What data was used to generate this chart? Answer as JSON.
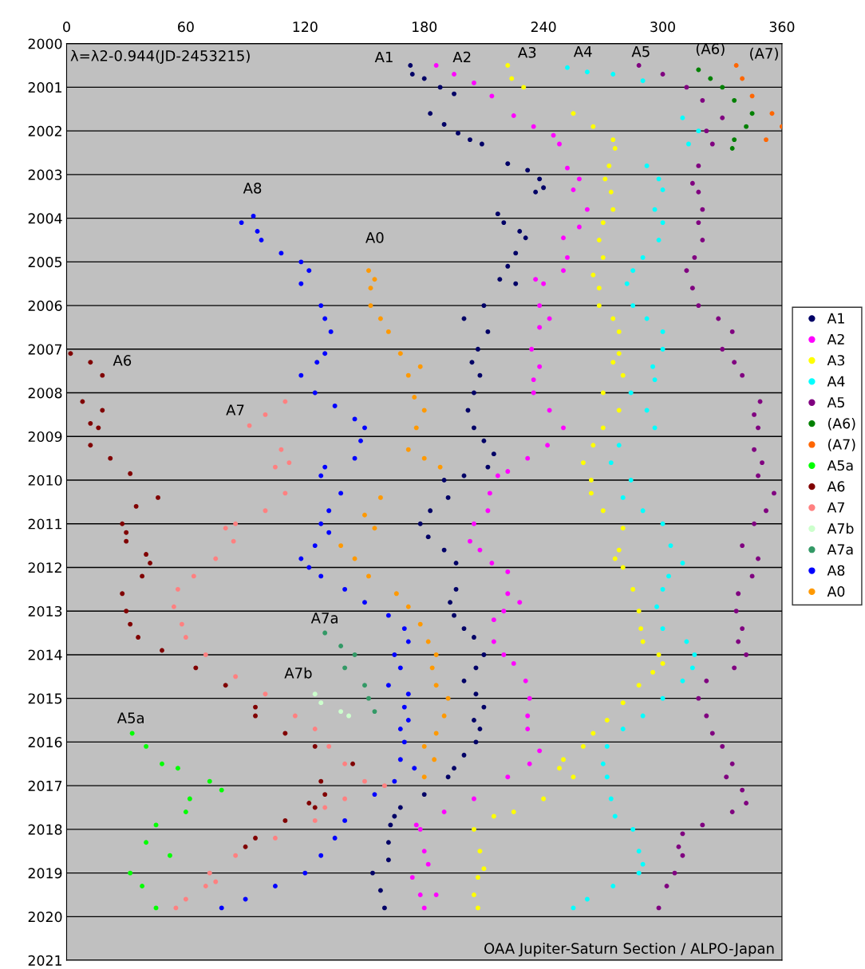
{
  "chart_data": {
    "type": "scatter",
    "xlim": [
      0,
      360
    ],
    "xticks": [
      0,
      60,
      120,
      180,
      240,
      300,
      360
    ],
    "ylim": [
      2021,
      2000
    ],
    "yticks": [
      2000,
      2001,
      2002,
      2003,
      2004,
      2005,
      2006,
      2007,
      2008,
      2009,
      2010,
      2011,
      2012,
      2013,
      2014,
      2015,
      2016,
      2017,
      2018,
      2019,
      2020,
      2021
    ],
    "grid": "y",
    "legend": "right",
    "marker": "circle",
    "annotations": [
      "λ=λ2-0.944(JD-2453215)",
      "OAA Jupiter-Saturn Section / ALPO-Japan",
      "A1",
      "A2",
      "A3",
      "A4",
      "A5",
      "(A6)",
      "(A7)",
      "A8",
      "A0",
      "A6",
      "A7",
      "A7a",
      "A7b",
      "A5a"
    ],
    "series": [
      {
        "name": "A1",
        "color": "#000066",
        "x": [
          173,
          174,
          180,
          188,
          195,
          183,
          190,
          197,
          203,
          209,
          222,
          232,
          238,
          240,
          236,
          217,
          220,
          228,
          231,
          226,
          222,
          218,
          226,
          210,
          200,
          212,
          207,
          204,
          208,
          205,
          202,
          205,
          210,
          215,
          212,
          200,
          190,
          192,
          183,
          178,
          182,
          190,
          196,
          196,
          193,
          195,
          200,
          205,
          210,
          206,
          200,
          206,
          210,
          205,
          208,
          206,
          200,
          195,
          192,
          180,
          168,
          165,
          163,
          162,
          162,
          154,
          158,
          160
        ],
        "values": [
          2000.5,
          2000.7,
          2000.8,
          2001.0,
          2001.15,
          2001.6,
          2001.85,
          2002.05,
          2002.2,
          2002.3,
          2002.75,
          2002.9,
          2003.1,
          2003.3,
          2003.4,
          2003.9,
          2004.1,
          2004.3,
          2004.45,
          2004.8,
          2005.1,
          2005.4,
          2005.5,
          2006.0,
          2006.3,
          2006.6,
          2007.0,
          2007.3,
          2007.6,
          2008.0,
          2008.4,
          2008.8,
          2009.1,
          2009.4,
          2009.7,
          2009.9,
          2010.0,
          2010.4,
          2010.7,
          2011.0,
          2011.3,
          2011.6,
          2011.9,
          2012.5,
          2012.8,
          2013.1,
          2013.4,
          2013.6,
          2014.0,
          2014.3,
          2014.6,
          2014.9,
          2015.2,
          2015.5,
          2015.7,
          2016.0,
          2016.3,
          2016.6,
          2016.8,
          2017.2,
          2017.5,
          2017.7,
          2017.9,
          2018.3,
          2018.7,
          2019.0,
          2019.4,
          2019.8
        ]
      },
      {
        "name": "A2",
        "color": "#ff00ff",
        "x": [
          186,
          195,
          205,
          214,
          225,
          235,
          245,
          248,
          252,
          258,
          255,
          262,
          258,
          250,
          252,
          250,
          236,
          240,
          238,
          243,
          238,
          234,
          238,
          235,
          235,
          243,
          250,
          242,
          232,
          222,
          217,
          213,
          212,
          205,
          203,
          208,
          214,
          222,
          222,
          228,
          220,
          215,
          215,
          220,
          225,
          231,
          233,
          232,
          232,
          238,
          233,
          222,
          205,
          190,
          176,
          178,
          180,
          182,
          174,
          178,
          186,
          180
        ],
        "values": [
          2000.5,
          2000.7,
          2000.9,
          2001.2,
          2001.65,
          2001.9,
          2002.1,
          2002.3,
          2002.85,
          2003.1,
          2003.35,
          2003.8,
          2004.2,
          2004.45,
          2004.9,
          2005.2,
          2005.4,
          2005.5,
          2006.0,
          2006.3,
          2006.5,
          2007.0,
          2007.4,
          2007.7,
          2008.0,
          2008.4,
          2008.8,
          2009.2,
          2009.5,
          2009.8,
          2009.9,
          2010.3,
          2010.7,
          2011.0,
          2011.4,
          2011.6,
          2011.9,
          2012.1,
          2012.6,
          2012.8,
          2013.0,
          2013.2,
          2013.7,
          2014.0,
          2014.2,
          2014.6,
          2015.0,
          2015.4,
          2015.7,
          2016.2,
          2016.5,
          2016.8,
          2017.3,
          2017.6,
          2017.9,
          2018.0,
          2018.5,
          2018.8,
          2019.1,
          2019.5,
          2019.5,
          2019.8
        ]
      },
      {
        "name": "A3",
        "color": "#ffff00",
        "x": [
          222,
          224,
          230,
          255,
          265,
          275,
          276,
          273,
          271,
          274,
          275,
          270,
          268,
          270,
          265,
          268,
          268,
          275,
          278,
          278,
          275,
          280,
          270,
          278,
          270,
          265,
          260,
          264,
          264,
          270,
          280,
          278,
          276,
          280,
          285,
          288,
          289,
          290,
          298,
          300,
          295,
          288,
          280,
          272,
          265,
          260,
          250,
          248,
          255,
          240,
          225,
          215,
          205,
          208,
          210,
          207,
          205,
          207
        ],
        "values": [
          2000.5,
          2000.8,
          2001.0,
          2001.6,
          2001.9,
          2002.2,
          2002.4,
          2002.8,
          2003.1,
          2003.4,
          2003.8,
          2004.1,
          2004.5,
          2004.9,
          2005.3,
          2005.6,
          2006.0,
          2006.3,
          2006.6,
          2007.1,
          2007.3,
          2007.6,
          2008.0,
          2008.4,
          2008.8,
          2009.2,
          2009.6,
          2010.0,
          2010.3,
          2010.7,
          2011.1,
          2011.6,
          2011.8,
          2012.0,
          2012.5,
          2013.0,
          2013.4,
          2013.7,
          2014.0,
          2014.2,
          2014.4,
          2014.7,
          2015.1,
          2015.5,
          2015.8,
          2016.1,
          2016.4,
          2016.6,
          2016.8,
          2017.3,
          2017.6,
          2017.7,
          2018.0,
          2018.5,
          2018.9,
          2019.1,
          2019.5,
          2019.8
        ]
      },
      {
        "name": "A4",
        "color": "#00ffff",
        "x": [
          252,
          262,
          275,
          290,
          310,
          318,
          313,
          292,
          298,
          300,
          296,
          300,
          298,
          290,
          285,
          282,
          285,
          292,
          300,
          300,
          295,
          296,
          284,
          292,
          296,
          278,
          274,
          284,
          280,
          290,
          300,
          304,
          310,
          303,
          300,
          297,
          300,
          312,
          316,
          315,
          310,
          300,
          290,
          280,
          272,
          270,
          272,
          274,
          276,
          285,
          288,
          290,
          288,
          275,
          262,
          255
        ],
        "values": [
          2000.55,
          2000.65,
          2000.7,
          2000.85,
          2001.7,
          2002.0,
          2002.3,
          2002.8,
          2003.1,
          2003.35,
          2003.8,
          2004.1,
          2004.5,
          2004.9,
          2005.2,
          2005.5,
          2006.0,
          2006.3,
          2006.6,
          2007.0,
          2007.4,
          2007.7,
          2008.0,
          2008.4,
          2008.8,
          2009.2,
          2009.6,
          2010.0,
          2010.4,
          2010.7,
          2011.0,
          2011.5,
          2011.9,
          2012.2,
          2012.5,
          2012.9,
          2013.4,
          2013.7,
          2014.0,
          2014.3,
          2014.6,
          2015.0,
          2015.4,
          2015.7,
          2016.1,
          2016.5,
          2016.8,
          2017.3,
          2017.7,
          2018.0,
          2018.5,
          2018.8,
          2019.0,
          2019.3,
          2019.6,
          2019.8
        ]
      },
      {
        "name": "A5",
        "color": "#800080",
        "x": [
          288,
          300,
          312,
          320,
          330,
          322,
          325,
          318,
          315,
          318,
          320,
          318,
          320,
          316,
          312,
          315,
          318,
          328,
          335,
          330,
          336,
          340,
          349,
          346,
          348,
          346,
          350,
          348,
          356,
          352,
          346,
          340,
          348,
          345,
          338,
          337,
          340,
          338,
          342,
          336,
          322,
          318,
          322,
          325,
          330,
          335,
          332,
          340,
          342,
          335,
          320,
          310,
          308,
          310,
          306,
          302,
          298
        ],
        "values": [
          2000.5,
          2000.7,
          2001.0,
          2001.3,
          2001.7,
          2002.0,
          2002.3,
          2002.8,
          2003.2,
          2003.4,
          2003.8,
          2004.1,
          2004.5,
          2004.9,
          2005.2,
          2005.6,
          2006.0,
          2006.3,
          2006.6,
          2007.0,
          2007.3,
          2007.6,
          2008.2,
          2008.5,
          2008.8,
          2009.3,
          2009.6,
          2009.9,
          2010.3,
          2010.7,
          2011.0,
          2011.5,
          2011.8,
          2012.2,
          2012.6,
          2013.0,
          2013.4,
          2013.7,
          2014.0,
          2014.3,
          2014.6,
          2015.0,
          2015.4,
          2015.8,
          2016.1,
          2016.5,
          2016.8,
          2017.1,
          2017.4,
          2017.6,
          2017.9,
          2018.1,
          2018.4,
          2018.6,
          2019.0,
          2019.3,
          2019.8
        ]
      },
      {
        "name": "(A6)",
        "color": "#008000",
        "x": [
          318,
          324,
          330,
          336,
          345,
          342,
          336,
          335
        ],
        "values": [
          2000.6,
          2000.8,
          2001.0,
          2001.3,
          2001.6,
          2001.9,
          2002.2,
          2002.4
        ]
      },
      {
        "name": "(A7)",
        "color": "#ff6600",
        "x": [
          337,
          340,
          345,
          355,
          360,
          352
        ],
        "values": [
          2000.5,
          2000.8,
          2001.2,
          2001.6,
          2001.9,
          2002.2
        ]
      },
      {
        "name": "A5a",
        "color": "#00ff00",
        "x": [
          33,
          40,
          48,
          56,
          72,
          78,
          62,
          60,
          45,
          40,
          52,
          32,
          38,
          45
        ],
        "values": [
          2015.8,
          2016.1,
          2016.5,
          2016.6,
          2016.9,
          2017.1,
          2017.3,
          2017.6,
          2017.9,
          2018.3,
          2018.6,
          2019.0,
          2019.3,
          2019.8
        ]
      },
      {
        "name": "A6",
        "color": "#800000",
        "x": [
          2,
          12,
          18,
          8,
          18,
          12,
          16,
          12,
          22,
          32,
          46,
          35,
          28,
          30,
          30,
          40,
          42,
          38,
          28,
          30,
          32,
          36,
          48,
          65,
          80,
          95,
          95,
          110,
          125,
          144,
          128,
          130,
          122,
          125,
          110,
          95,
          90
        ],
        "values": [
          2007.1,
          2007.3,
          2007.6,
          2008.2,
          2008.4,
          2008.7,
          2008.8,
          2009.2,
          2009.5,
          2009.85,
          2010.4,
          2010.6,
          2011.0,
          2011.2,
          2011.4,
          2011.7,
          2011.9,
          2012.2,
          2012.6,
          2013.0,
          2013.3,
          2013.6,
          2013.9,
          2014.3,
          2014.7,
          2015.2,
          2015.4,
          2015.8,
          2016.1,
          2016.5,
          2016.9,
          2017.2,
          2017.4,
          2017.5,
          2017.8,
          2018.2,
          2018.4
        ]
      },
      {
        "name": "A7",
        "color": "#ff8080",
        "x": [
          110,
          100,
          92,
          108,
          112,
          105,
          110,
          100,
          85,
          80,
          84,
          75,
          64,
          56,
          54,
          58,
          60,
          70,
          85,
          100,
          115,
          125,
          132,
          140,
          150,
          160,
          140,
          130,
          125,
          105,
          85,
          72,
          75,
          70,
          60,
          55
        ],
        "values": [
          2008.2,
          2008.5,
          2008.75,
          2009.3,
          2009.6,
          2009.7,
          2010.3,
          2010.7,
          2011.0,
          2011.1,
          2011.4,
          2011.8,
          2012.2,
          2012.5,
          2012.9,
          2013.3,
          2013.6,
          2014.0,
          2014.5,
          2014.9,
          2015.4,
          2015.7,
          2016.1,
          2016.5,
          2016.9,
          2017.0,
          2017.3,
          2017.5,
          2017.8,
          2018.2,
          2018.6,
          2019.0,
          2019.2,
          2019.3,
          2019.6,
          2019.8
        ]
      },
      {
        "name": "A7b",
        "color": "#ccffcc",
        "x": [
          125,
          128,
          138,
          142
        ],
        "values": [
          2014.9,
          2015.1,
          2015.3,
          2015.4
        ]
      },
      {
        "name": "A7a",
        "color": "#339966",
        "x": [
          130,
          138,
          145,
          140,
          150,
          152,
          155
        ],
        "values": [
          2013.5,
          2013.8,
          2014.0,
          2014.3,
          2014.7,
          2015.0,
          2015.3
        ]
      },
      {
        "name": "A8",
        "color": "#0000ff",
        "x": [
          94,
          88,
          96,
          98,
          108,
          118,
          122,
          118,
          128,
          130,
          133,
          130,
          126,
          118,
          125,
          135,
          145,
          150,
          148,
          145,
          130,
          128,
          138,
          132,
          128,
          132,
          125,
          118,
          122,
          128,
          140,
          150,
          162,
          170,
          172,
          165,
          168,
          162,
          172,
          170,
          172,
          168,
          170,
          168,
          175,
          165,
          155,
          140,
          135,
          128,
          120,
          105,
          90,
          78
        ],
        "values": [
          2003.95,
          2004.1,
          2004.3,
          2004.5,
          2004.8,
          2005.0,
          2005.2,
          2005.5,
          2006.0,
          2006.3,
          2006.6,
          2007.1,
          2007.3,
          2007.6,
          2008.0,
          2008.3,
          2008.6,
          2008.8,
          2009.1,
          2009.5,
          2009.7,
          2009.9,
          2010.3,
          2010.7,
          2011.0,
          2011.2,
          2011.5,
          2011.8,
          2012.0,
          2012.2,
          2012.5,
          2012.8,
          2013.1,
          2013.4,
          2013.7,
          2014.0,
          2014.3,
          2014.7,
          2014.9,
          2015.2,
          2015.5,
          2015.7,
          2016.0,
          2016.4,
          2016.6,
          2016.9,
          2017.2,
          2017.8,
          2018.2,
          2018.6,
          2019.0,
          2019.3,
          2019.6,
          2019.8
        ]
      },
      {
        "name": "A0",
        "color": "#ff9900",
        "x": [
          152,
          155,
          153,
          153,
          158,
          162,
          168,
          178,
          172,
          175,
          180,
          176,
          172,
          180,
          188,
          158,
          150,
          155,
          138,
          145,
          152,
          166,
          172,
          178,
          182,
          186,
          184,
          186,
          192,
          190,
          186,
          180,
          185,
          180
        ],
        "values": [
          2005.2,
          2005.4,
          2005.6,
          2006.0,
          2006.3,
          2006.6,
          2007.1,
          2007.4,
          2007.6,
          2008.1,
          2008.4,
          2008.8,
          2009.3,
          2009.5,
          2009.7,
          2010.4,
          2010.8,
          2011.1,
          2011.5,
          2011.8,
          2012.2,
          2012.6,
          2012.9,
          2013.3,
          2013.7,
          2014.0,
          2014.3,
          2014.7,
          2015.0,
          2015.4,
          2015.8,
          2016.1,
          2016.4,
          2016.8
        ]
      }
    ]
  }
}
